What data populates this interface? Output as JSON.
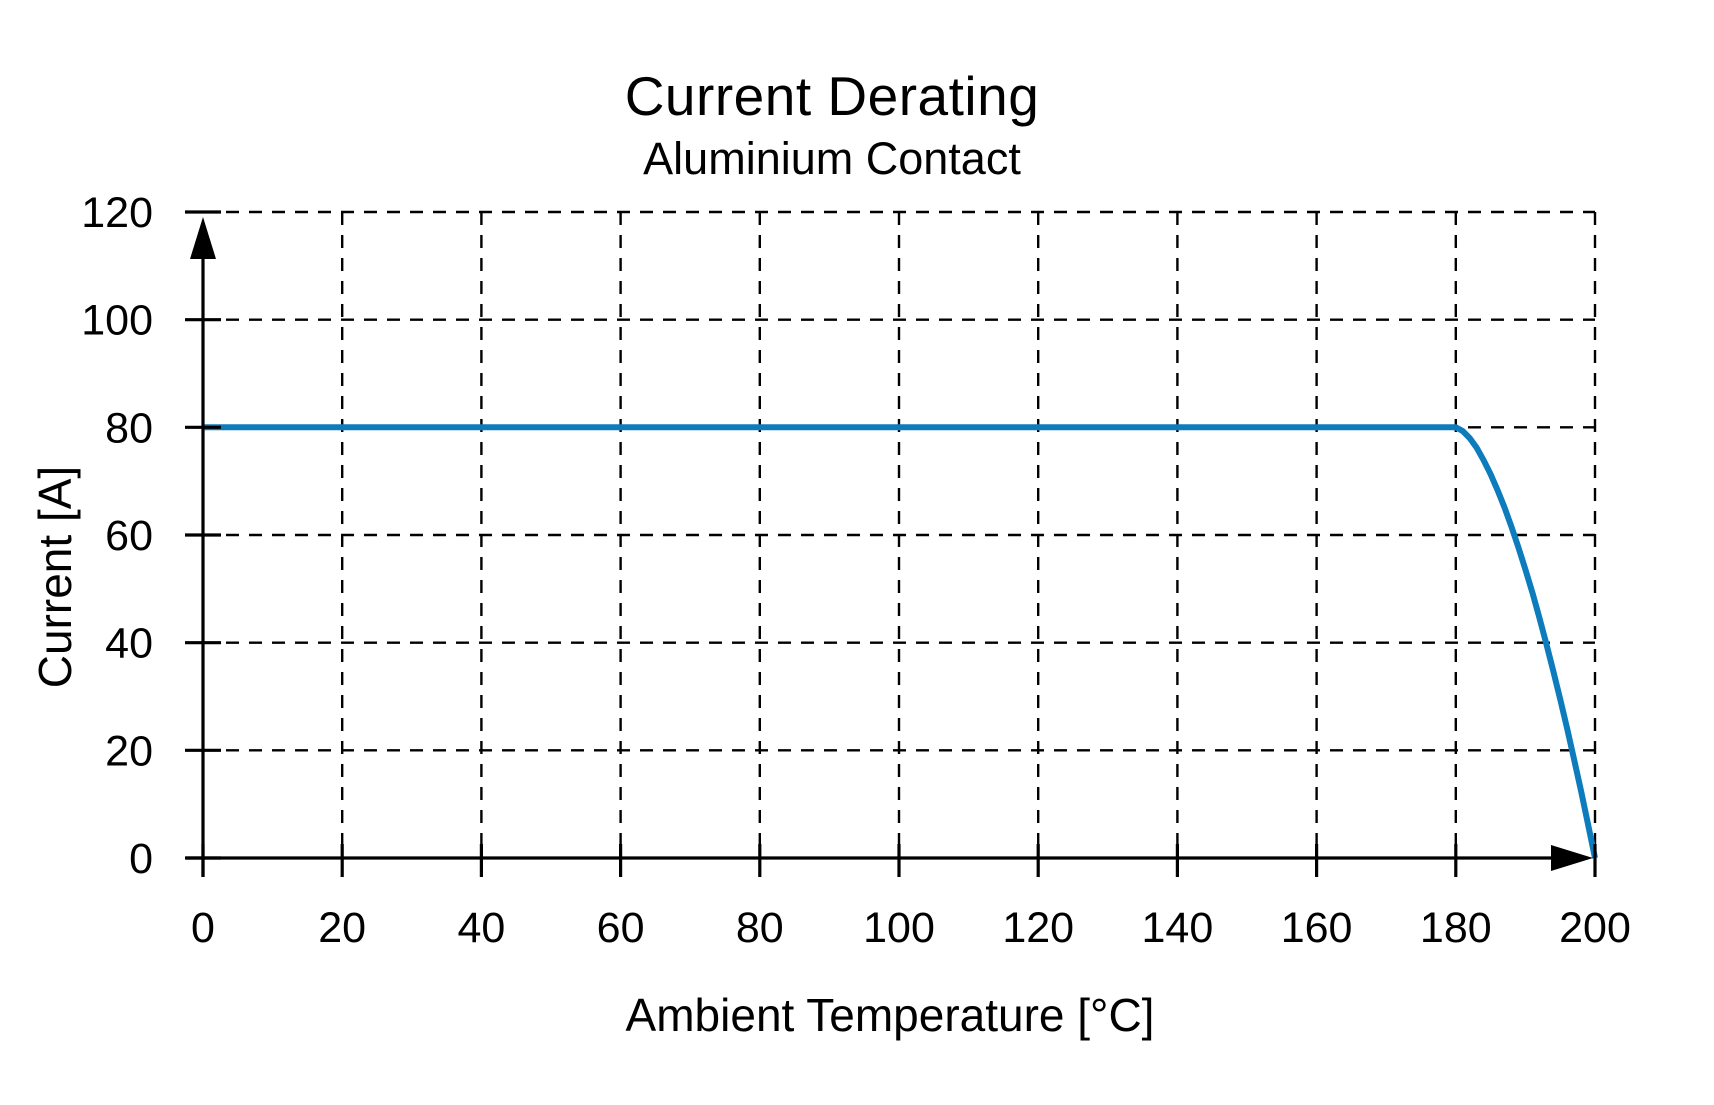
{
  "chart_data": {
    "type": "line",
    "title": "Current Derating",
    "subtitle": "Aluminium Contact",
    "xlabel": "Ambient Temperature [°C]",
    "ylabel": "Current [A]",
    "xlim": [
      0,
      200
    ],
    "ylim": [
      0,
      120
    ],
    "x_ticks": [
      0,
      20,
      40,
      60,
      80,
      100,
      120,
      140,
      160,
      180,
      200
    ],
    "y_ticks": [
      0,
      20,
      40,
      60,
      80,
      100,
      120
    ],
    "grid": "dashed",
    "legend_position": "none",
    "axis_color": "#000000",
    "grid_color": "#000000",
    "line_color": "#0d7cbc",
    "series": [
      {
        "name": "Aluminium Contact",
        "points": [
          [
            0,
            80
          ],
          [
            20,
            80
          ],
          [
            40,
            80
          ],
          [
            60,
            80
          ],
          [
            80,
            80
          ],
          [
            100,
            80
          ],
          [
            120,
            80
          ],
          [
            140,
            80
          ],
          [
            160,
            80
          ],
          [
            180,
            80
          ],
          [
            181,
            79.3
          ],
          [
            182,
            78.0
          ],
          [
            183,
            76.2
          ],
          [
            184,
            73.9
          ],
          [
            185,
            71.3
          ],
          [
            186,
            68.3
          ],
          [
            187,
            65.1
          ],
          [
            188,
            61.5
          ],
          [
            189,
            57.7
          ],
          [
            190,
            53.6
          ],
          [
            191,
            49.3
          ],
          [
            192,
            44.7
          ],
          [
            193,
            39.8
          ],
          [
            194,
            34.8
          ],
          [
            195,
            29.5
          ],
          [
            196,
            24.0
          ],
          [
            197,
            18.3
          ],
          [
            198,
            12.4
          ],
          [
            199,
            6.3
          ],
          [
            200,
            0
          ]
        ]
      }
    ]
  }
}
